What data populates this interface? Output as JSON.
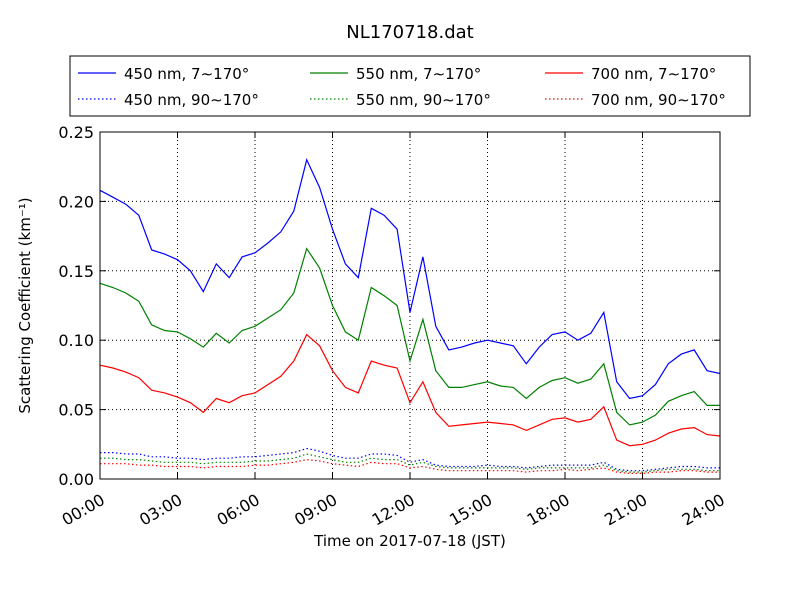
{
  "chart_data": {
    "type": "line",
    "title": "NL170718.dat",
    "xlabel": "Time on 2017-07-18 (JST)",
    "ylabel": "Scattering Coefficient (km⁻¹)",
    "x_ticks": [
      "00:00",
      "03:00",
      "06:00",
      "09:00",
      "12:00",
      "15:00",
      "18:00",
      "21:00",
      "24:00"
    ],
    "y_ticks": [
      "0.00",
      "0.05",
      "0.10",
      "0.15",
      "0.20",
      "0.25"
    ],
    "xlim": [
      "00:00",
      "24:00"
    ],
    "ylim": [
      0,
      0.25
    ],
    "grid": true,
    "legend_position": "top, above plot (3 columns)",
    "x": [
      "00:00",
      "00:30",
      "01:00",
      "01:30",
      "02:00",
      "02:30",
      "03:00",
      "03:30",
      "04:00",
      "04:30",
      "05:00",
      "05:30",
      "06:00",
      "06:30",
      "07:00",
      "07:30",
      "08:00",
      "08:30",
      "09:00",
      "09:30",
      "10:00",
      "10:30",
      "11:00",
      "11:30",
      "12:00",
      "12:30",
      "13:00",
      "13:30",
      "14:00",
      "14:30",
      "15:00",
      "15:30",
      "16:00",
      "16:30",
      "17:00",
      "17:30",
      "18:00",
      "18:30",
      "19:00",
      "19:30",
      "20:00",
      "20:30",
      "21:00",
      "21:30",
      "22:00",
      "22:30",
      "23:00",
      "23:30",
      "24:00"
    ],
    "series": [
      {
        "name": "450 nm, 7∼170°",
        "color": "#0000ff",
        "style": "solid",
        "values": [
          0.208,
          0.203,
          0.198,
          0.19,
          0.165,
          0.162,
          0.158,
          0.15,
          0.135,
          0.155,
          0.145,
          0.16,
          0.163,
          0.17,
          0.178,
          0.193,
          0.23,
          0.21,
          0.18,
          0.155,
          0.145,
          0.195,
          0.19,
          0.18,
          0.12,
          0.16,
          0.11,
          0.093,
          0.095,
          0.098,
          0.1,
          0.098,
          0.096,
          0.083,
          0.095,
          0.104,
          0.106,
          0.1,
          0.105,
          0.12,
          0.07,
          0.058,
          0.06,
          0.068,
          0.083,
          0.09,
          0.093,
          0.078,
          0.076
        ]
      },
      {
        "name": "550 nm, 7∼170°",
        "color": "#008000",
        "style": "solid",
        "values": [
          0.141,
          0.138,
          0.134,
          0.128,
          0.111,
          0.107,
          0.106,
          0.101,
          0.095,
          0.105,
          0.098,
          0.107,
          0.11,
          0.116,
          0.122,
          0.134,
          0.166,
          0.152,
          0.125,
          0.106,
          0.1,
          0.138,
          0.132,
          0.125,
          0.085,
          0.115,
          0.078,
          0.066,
          0.066,
          0.068,
          0.07,
          0.067,
          0.066,
          0.058,
          0.066,
          0.071,
          0.073,
          0.069,
          0.072,
          0.083,
          0.048,
          0.039,
          0.041,
          0.046,
          0.056,
          0.06,
          0.063,
          0.053,
          0.053
        ]
      },
      {
        "name": "700 nm, 7∼170°",
        "color": "#ff0000",
        "style": "solid",
        "values": [
          0.082,
          0.08,
          0.077,
          0.073,
          0.064,
          0.062,
          0.059,
          0.055,
          0.048,
          0.058,
          0.055,
          0.06,
          0.062,
          0.068,
          0.074,
          0.085,
          0.104,
          0.096,
          0.078,
          0.066,
          0.062,
          0.085,
          0.082,
          0.08,
          0.055,
          0.07,
          0.048,
          0.038,
          0.039,
          0.04,
          0.041,
          0.04,
          0.039,
          0.035,
          0.039,
          0.043,
          0.044,
          0.041,
          0.043,
          0.052,
          0.028,
          0.024,
          0.025,
          0.028,
          0.033,
          0.036,
          0.037,
          0.032,
          0.031
        ]
      },
      {
        "name": "450 nm, 90∼170°",
        "color": "#0000ff",
        "style": "dotted",
        "values": [
          0.019,
          0.019,
          0.018,
          0.018,
          0.016,
          0.016,
          0.015,
          0.015,
          0.014,
          0.015,
          0.015,
          0.016,
          0.016,
          0.017,
          0.018,
          0.019,
          0.022,
          0.02,
          0.017,
          0.015,
          0.015,
          0.018,
          0.018,
          0.017,
          0.012,
          0.014,
          0.01,
          0.009,
          0.009,
          0.009,
          0.01,
          0.009,
          0.009,
          0.008,
          0.009,
          0.01,
          0.01,
          0.01,
          0.01,
          0.012,
          0.007,
          0.006,
          0.006,
          0.007,
          0.008,
          0.009,
          0.009,
          0.008,
          0.008
        ]
      },
      {
        "name": "550 nm, 90∼170°",
        "color": "#008000",
        "style": "dotted",
        "values": [
          0.015,
          0.015,
          0.014,
          0.014,
          0.013,
          0.012,
          0.012,
          0.012,
          0.011,
          0.012,
          0.012,
          0.012,
          0.013,
          0.013,
          0.014,
          0.015,
          0.018,
          0.016,
          0.014,
          0.012,
          0.012,
          0.015,
          0.014,
          0.014,
          0.01,
          0.012,
          0.009,
          0.008,
          0.008,
          0.008,
          0.008,
          0.008,
          0.008,
          0.007,
          0.008,
          0.008,
          0.008,
          0.008,
          0.008,
          0.01,
          0.006,
          0.005,
          0.005,
          0.006,
          0.007,
          0.007,
          0.007,
          0.006,
          0.006
        ]
      },
      {
        "name": "700 nm, 90∼170°",
        "color": "#ff0000",
        "style": "dotted",
        "values": [
          0.011,
          0.011,
          0.011,
          0.01,
          0.01,
          0.009,
          0.009,
          0.009,
          0.008,
          0.009,
          0.009,
          0.009,
          0.01,
          0.01,
          0.011,
          0.012,
          0.014,
          0.013,
          0.011,
          0.01,
          0.009,
          0.012,
          0.011,
          0.011,
          0.008,
          0.009,
          0.007,
          0.006,
          0.006,
          0.006,
          0.006,
          0.006,
          0.006,
          0.005,
          0.006,
          0.006,
          0.007,
          0.006,
          0.007,
          0.008,
          0.005,
          0.004,
          0.004,
          0.005,
          0.005,
          0.006,
          0.006,
          0.005,
          0.005
        ]
      }
    ]
  }
}
